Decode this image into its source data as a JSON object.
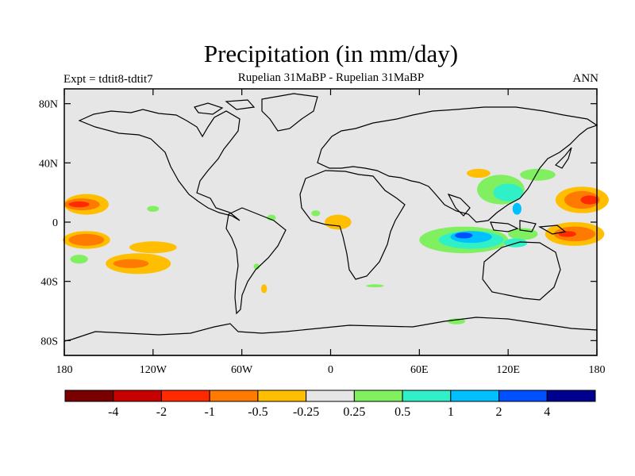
{
  "header": {
    "title": "Precipitation (in mm/day)",
    "subtitle": "Rupelian  31MaBP - Rupelian  31MaBP",
    "left_label": "Expt = tdtit8-tdtit7",
    "right_label": "ANN"
  },
  "map": {
    "background": "#e6e6e6",
    "projection": "cylindrical-equidistant",
    "lon_range": [
      -180,
      180
    ],
    "lat_range": [
      -90,
      90
    ],
    "y_ticks": [
      {
        "lat": 80,
        "label": "80N"
      },
      {
        "lat": 40,
        "label": "40N"
      },
      {
        "lat": 0,
        "label": "0"
      },
      {
        "lat": -40,
        "label": "40S"
      },
      {
        "lat": -80,
        "label": "80S"
      }
    ],
    "x_ticks": [
      {
        "lon": -180,
        "label": "180"
      },
      {
        "lon": -120,
        "label": "120W"
      },
      {
        "lon": -60,
        "label": "60W"
      },
      {
        "lon": 0,
        "label": "0"
      },
      {
        "lon": 60,
        "label": "60E"
      },
      {
        "lon": 120,
        "label": "120E"
      },
      {
        "lon": 180,
        "label": "180"
      }
    ]
  },
  "colorbar": {
    "colors": [
      "#7a0000",
      "#c80000",
      "#ff2a00",
      "#ff7a00",
      "#ffbf00",
      "#e6e6e6",
      "#80f060",
      "#30f0c8",
      "#00c0ff",
      "#0050ff",
      "#000090"
    ],
    "labels": [
      "-4",
      "-2",
      "-1",
      "-0.5",
      "-0.25",
      "0.25",
      "0.5",
      "1",
      "2",
      "4"
    ]
  },
  "fields": [
    {
      "color": "#ffbf00",
      "regions": [
        {
          "lon": -165,
          "lat": 12,
          "rx": 15,
          "ry": 7
        },
        {
          "lon": -165,
          "lat": -12,
          "rx": 16,
          "ry": 6
        },
        {
          "lon": -120,
          "lat": -17,
          "rx": 16,
          "ry": 4
        },
        {
          "lon": -130,
          "lat": -28,
          "rx": 22,
          "ry": 7
        },
        {
          "lon": 5,
          "lat": 0,
          "rx": 9,
          "ry": 5
        },
        {
          "lon": 170,
          "lat": 15,
          "rx": 18,
          "ry": 9
        },
        {
          "lon": 165,
          "lat": -8,
          "rx": 20,
          "ry": 8
        },
        {
          "lon": 100,
          "lat": 33,
          "rx": 8,
          "ry": 3
        },
        {
          "lon": -45,
          "lat": -45,
          "rx": 2,
          "ry": 3
        }
      ]
    },
    {
      "color": "#ff7a00",
      "regions": [
        {
          "lon": -168,
          "lat": 12,
          "rx": 12,
          "ry": 4
        },
        {
          "lon": -165,
          "lat": -12,
          "rx": 12,
          "ry": 4
        },
        {
          "lon": -135,
          "lat": -28,
          "rx": 12,
          "ry": 3
        },
        {
          "lon": 170,
          "lat": 15,
          "rx": 12,
          "ry": 6
        },
        {
          "lon": 165,
          "lat": -8,
          "rx": 14,
          "ry": 5
        }
      ]
    },
    {
      "color": "#ff2a00",
      "regions": [
        {
          "lon": -170,
          "lat": 12,
          "rx": 7,
          "ry": 2
        },
        {
          "lon": 175,
          "lat": 15,
          "rx": 6,
          "ry": 3
        },
        {
          "lon": 160,
          "lat": -8,
          "rx": 6,
          "ry": 2
        }
      ]
    },
    {
      "color": "#80f060",
      "regions": [
        {
          "lon": 90,
          "lat": -12,
          "rx": 30,
          "ry": 9
        },
        {
          "lon": 115,
          "lat": 22,
          "rx": 16,
          "ry": 10
        },
        {
          "lon": 140,
          "lat": 32,
          "rx": 12,
          "ry": 4
        },
        {
          "lon": 130,
          "lat": -8,
          "rx": 10,
          "ry": 4
        },
        {
          "lon": -120,
          "lat": 9,
          "rx": 4,
          "ry": 2
        },
        {
          "lon": -50,
          "lat": -30,
          "rx": 2,
          "ry": 2
        },
        {
          "lon": -10,
          "lat": 6,
          "rx": 3,
          "ry": 2
        },
        {
          "lon": 30,
          "lat": -43,
          "rx": 6,
          "ry": 1
        },
        {
          "lon": 85,
          "lat": -67,
          "rx": 6,
          "ry": 2
        },
        {
          "lon": -170,
          "lat": -25,
          "rx": 6,
          "ry": 3
        },
        {
          "lon": -40,
          "lat": 3,
          "rx": 3,
          "ry": 2
        }
      ]
    },
    {
      "color": "#30f0c8",
      "regions": [
        {
          "lon": 95,
          "lat": -12,
          "rx": 22,
          "ry": 6
        },
        {
          "lon": 120,
          "lat": 20,
          "rx": 10,
          "ry": 6
        },
        {
          "lon": 125,
          "lat": -14,
          "rx": 8,
          "ry": 3
        }
      ]
    },
    {
      "color": "#00c0ff",
      "regions": [
        {
          "lon": 95,
          "lat": -10,
          "rx": 14,
          "ry": 4
        },
        {
          "lon": 126,
          "lat": 9,
          "rx": 3,
          "ry": 4
        }
      ]
    },
    {
      "color": "#0050ff",
      "regions": [
        {
          "lon": 90,
          "lat": -9,
          "rx": 6,
          "ry": 2
        }
      ]
    }
  ]
}
